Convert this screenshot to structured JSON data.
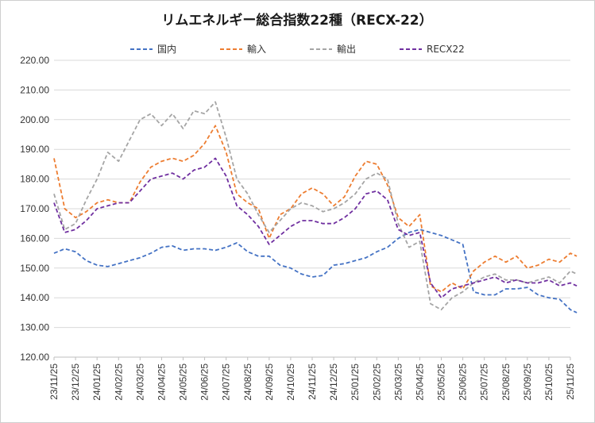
{
  "chart_data": {
    "type": "line",
    "title": "リムエネルギー総合指数22種（RECX-22）",
    "xlabel": "",
    "ylabel": "",
    "ylim": [
      120,
      220
    ],
    "y_ticks": [
      "120.00",
      "130.00",
      "140.00",
      "150.00",
      "160.00",
      "170.00",
      "180.00",
      "190.00",
      "200.00",
      "210.00",
      "220.00"
    ],
    "categories": [
      "23/11/25",
      "23/12/25",
      "24/01/25",
      "24/02/25",
      "24/03/25",
      "24/04/25",
      "24/05/25",
      "24/06/25",
      "24/07/25",
      "24/08/25",
      "24/09/25",
      "24/10/25",
      "24/11/25",
      "24/12/25",
      "25/01/25",
      "25/02/25",
      "25/03/25",
      "25/04/25",
      "25/05/25",
      "25/06/25",
      "25/07/25",
      "25/08/25",
      "25/09/25",
      "25/10/25",
      "25/11/25"
    ],
    "x": [
      0,
      0.5,
      1,
      1.5,
      2,
      2.5,
      3,
      3.5,
      4,
      4.5,
      5,
      5.5,
      6,
      6.5,
      7,
      7.5,
      8,
      8.5,
      9,
      9.5,
      10,
      10.5,
      11,
      11.5,
      12,
      12.5,
      13,
      13.5,
      14,
      14.5,
      15,
      15.5,
      16,
      16.5,
      17,
      17.5,
      18,
      18.5,
      19,
      19.5,
      20,
      20.5,
      21,
      21.5,
      22,
      22.5,
      23,
      23.5,
      24,
      24.3
    ],
    "grid": true,
    "legend_position": "top",
    "series": [
      {
        "name": "国内",
        "color": "#4472C4",
        "values": [
          155,
          156.5,
          155.5,
          152.5,
          151,
          150.5,
          151.5,
          152.5,
          153.5,
          155,
          157,
          157.5,
          156,
          156.5,
          156.5,
          156,
          157,
          158.5,
          155.5,
          154,
          154,
          151,
          150,
          148,
          147,
          147.5,
          151,
          151.5,
          152.5,
          153.5,
          155.5,
          157,
          160,
          162,
          163,
          162,
          161,
          159.5,
          158,
          142,
          141,
          141,
          143,
          143,
          143.5,
          141,
          140,
          139.5,
          136,
          135
        ]
      },
      {
        "name": "輸入",
        "color": "#ED7D31",
        "values": [
          187,
          170,
          167,
          169,
          172,
          173,
          172,
          172,
          179,
          184,
          186,
          187,
          186,
          188,
          192,
          198,
          189,
          175,
          172,
          170,
          160,
          168,
          170,
          175,
          177,
          175,
          171,
          174,
          181,
          186,
          185,
          178,
          167,
          164,
          168,
          144,
          142,
          145,
          143,
          149,
          152,
          154,
          152,
          154,
          150,
          151,
          153,
          152,
          155,
          154
        ]
      },
      {
        "name": "輸出",
        "color": "#A5A5A5",
        "values": [
          175,
          163,
          165,
          173,
          180,
          189,
          186,
          193,
          200,
          202,
          198,
          202,
          197,
          203,
          202,
          206,
          194,
          180,
          175,
          168,
          162,
          166,
          170,
          172,
          171,
          169,
          170,
          172,
          175,
          180,
          182,
          180,
          165,
          157,
          159,
          138,
          136,
          140,
          142,
          145,
          147,
          148,
          146,
          146,
          145,
          146,
          147,
          145,
          149,
          148
        ]
      },
      {
        "name": "RECX22",
        "color": "#7030A0",
        "values": [
          172,
          162,
          163,
          166,
          170,
          171,
          172,
          172,
          176,
          180,
          181,
          182,
          180,
          183,
          184,
          187,
          181,
          171,
          168,
          164,
          158,
          161,
          164,
          166,
          166,
          165,
          165,
          167,
          170,
          175,
          176,
          173,
          163,
          161,
          162,
          145,
          140,
          143,
          144,
          145,
          146,
          147,
          145,
          146,
          145,
          145,
          146,
          144,
          145,
          144
        ]
      }
    ]
  }
}
